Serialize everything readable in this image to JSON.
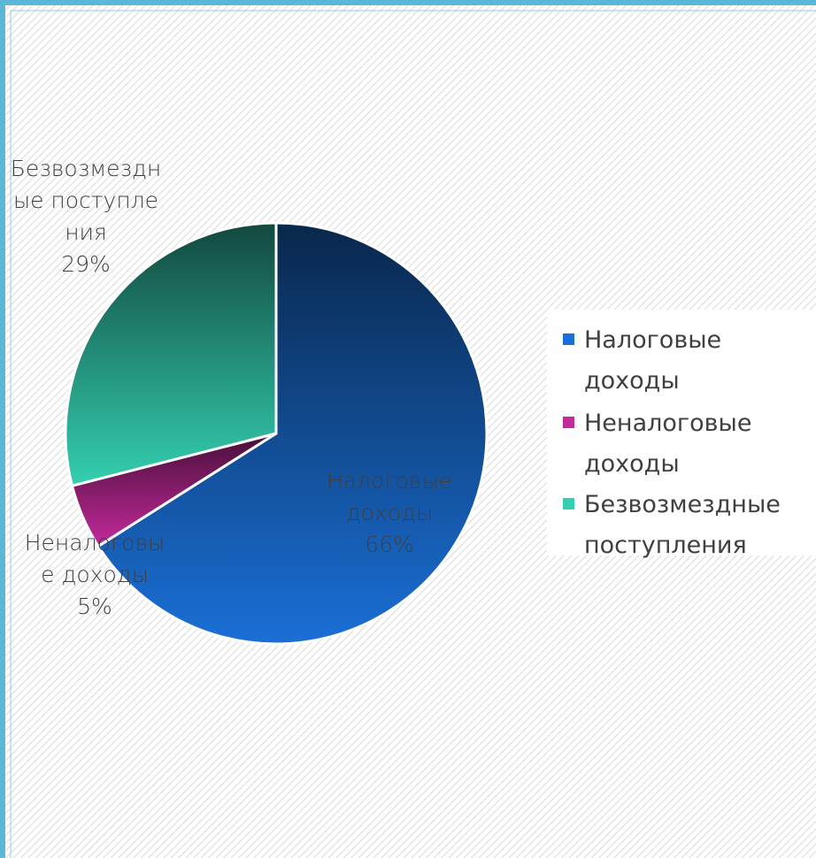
{
  "chart_data": {
    "type": "pie",
    "categories": [
      "Налоговые доходы",
      "Неналоговые доходы",
      "Безвозмездные поступления"
    ],
    "values": [
      66,
      5,
      29
    ],
    "value_labels": [
      "66%",
      "5%",
      "29%"
    ],
    "colors": [
      "#1a6fd6",
      "#c42a9c",
      "#34cfb0"
    ],
    "legend": "right"
  }
}
